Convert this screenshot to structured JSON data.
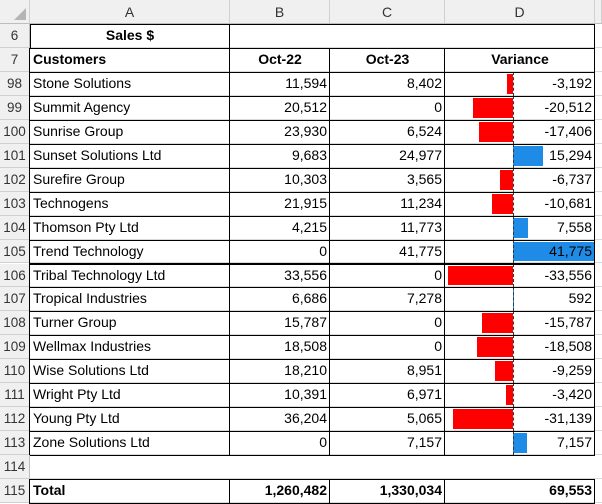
{
  "columns": [
    "A",
    "B",
    "C",
    "D"
  ],
  "title_row": {
    "row": "6",
    "label": "Sales $"
  },
  "header_row": {
    "row": "7",
    "customers": "Customers",
    "b": "Oct-22",
    "c": "Oct-23",
    "d": "Variance"
  },
  "rows": [
    {
      "row": "98",
      "customer": "Stone Solutions",
      "oct22": "11,594",
      "oct23": "8,402",
      "variance": "-3,192",
      "v": -3192
    },
    {
      "row": "99",
      "customer": "Summit Agency",
      "oct22": "20,512",
      "oct23": "0",
      "variance": "-20,512",
      "v": -20512
    },
    {
      "row": "100",
      "customer": "Sunrise Group",
      "oct22": "23,930",
      "oct23": "6,524",
      "variance": "-17,406",
      "v": -17406
    },
    {
      "row": "101",
      "customer": "Sunset Solutions Ltd",
      "oct22": "9,683",
      "oct23": "24,977",
      "variance": "15,294",
      "v": 15294
    },
    {
      "row": "102",
      "customer": "Surefire Group",
      "oct22": "10,303",
      "oct23": "3,565",
      "variance": "-6,737",
      "v": -6737
    },
    {
      "row": "103",
      "customer": "Technogens",
      "oct22": "21,915",
      "oct23": "11,234",
      "variance": "-10,681",
      "v": -10681
    },
    {
      "row": "104",
      "customer": "Thomson Pty Ltd",
      "oct22": "4,215",
      "oct23": "11,773",
      "variance": "7,558",
      "v": 7558
    },
    {
      "row": "105",
      "customer": "Trend Technology",
      "oct22": "0",
      "oct23": "41,775",
      "variance": "41,775",
      "v": 41775
    },
    {
      "row": "106",
      "customer": "Tribal Technology Ltd",
      "oct22": "33,556",
      "oct23": "0",
      "variance": "-33,556",
      "v": -33556
    },
    {
      "row": "107",
      "customer": "Tropical Industries",
      "oct22": "6,686",
      "oct23": "7,278",
      "variance": "592",
      "v": 592
    },
    {
      "row": "108",
      "customer": "Turner Group",
      "oct22": "15,787",
      "oct23": "0",
      "variance": "-15,787",
      "v": -15787
    },
    {
      "row": "109",
      "customer": "Wellmax Industries",
      "oct22": "18,508",
      "oct23": "0",
      "variance": "-18,508",
      "v": -18508
    },
    {
      "row": "110",
      "customer": "Wise Solutions Ltd",
      "oct22": "18,210",
      "oct23": "8,951",
      "variance": "-9,259",
      "v": -9259
    },
    {
      "row": "111",
      "customer": "Wright Pty Ltd",
      "oct22": "10,391",
      "oct23": "6,971",
      "variance": "-3,420",
      "v": -3420
    },
    {
      "row": "112",
      "customer": "Young Pty Ltd",
      "oct22": "36,204",
      "oct23": "5,065",
      "variance": "-31,139",
      "v": -31139
    },
    {
      "row": "113",
      "customer": "Zone Solutions Ltd",
      "oct22": "0",
      "oct23": "7,157",
      "variance": "7,157",
      "v": 7157
    }
  ],
  "blank_row": {
    "row": "114"
  },
  "total_row": {
    "row": "115",
    "label": "Total",
    "oct22": "1,260,482",
    "oct23": "1,330,034",
    "variance": "69,553"
  },
  "colors": {
    "negative_bar": "#ff0000",
    "positive_bar": "#1e8ce6"
  }
}
